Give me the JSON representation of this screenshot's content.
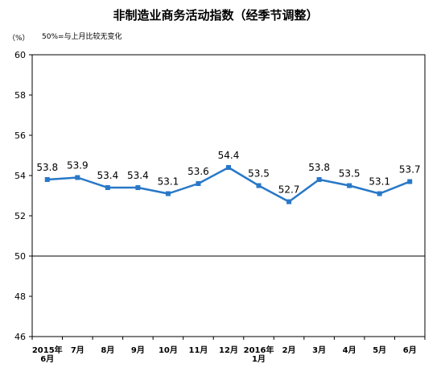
{
  "chart_data": {
    "type": "line",
    "title": "非制造业商务活动指数（经季节调整）",
    "y_unit": "（%）",
    "annotation": "50%=与上月比较无变化",
    "ylim": [
      46,
      60
    ],
    "yticks": [
      "46",
      "48",
      "50",
      "52",
      "54",
      "56",
      "58",
      "60"
    ],
    "reference_line": 50,
    "grid": false,
    "categories": [
      [
        "2015年",
        "6月"
      ],
      [
        "7月"
      ],
      [
        "8月"
      ],
      [
        "9月"
      ],
      [
        "10月"
      ],
      [
        "11月"
      ],
      [
        "12月"
      ],
      [
        "2016年",
        "1月"
      ],
      [
        "2月"
      ],
      [
        "3月"
      ],
      [
        "4月"
      ],
      [
        "5月"
      ],
      [
        "6月"
      ]
    ],
    "series": [
      {
        "values": [
          53.8,
          53.9,
          53.4,
          53.4,
          53.1,
          53.6,
          54.4,
          53.5,
          52.7,
          53.8,
          53.5,
          53.1,
          53.7
        ],
        "labels": [
          "53.8",
          "53.9",
          "53.4",
          "53.4",
          "53.1",
          "53.6",
          "54.4",
          "53.5",
          "52.7",
          "53.8",
          "53.5",
          "53.1",
          "53.7"
        ],
        "color": "#2878c8"
      }
    ]
  }
}
